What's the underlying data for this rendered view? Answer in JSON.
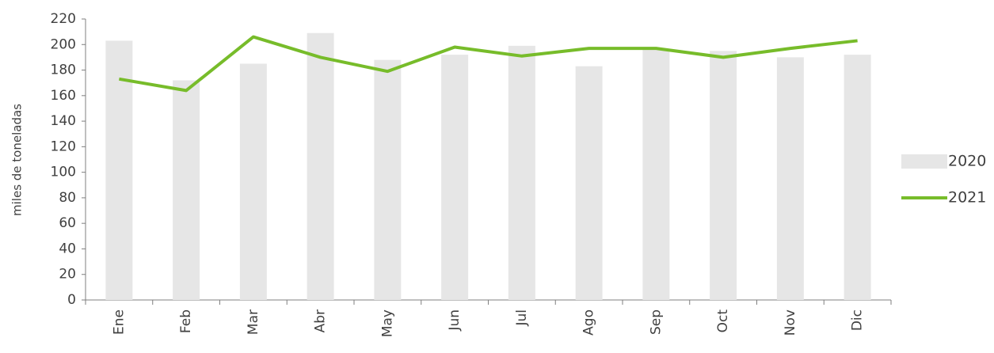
{
  "chart_data": {
    "type": "bar-line",
    "y_label": "miles de toneladas",
    "categories": [
      "Ene",
      "Feb",
      "Mar",
      "Abr",
      "May",
      "Jun",
      "Jul",
      "Ago",
      "Sep",
      "Oct",
      "Nov",
      "Dic"
    ],
    "series": [
      {
        "name": "2020",
        "type": "bar",
        "color": "#e6e6e6",
        "values": [
          203,
          172,
          185,
          209,
          188,
          192,
          199,
          183,
          196,
          195,
          190,
          192
        ]
      },
      {
        "name": "2021",
        "type": "line",
        "color": "#77bc2a",
        "values": [
          173,
          164,
          206,
          190,
          179,
          198,
          191,
          197,
          197,
          190,
          197,
          203
        ]
      }
    ],
    "ylim": [
      0,
      220
    ],
    "yticks": [
      0,
      20,
      40,
      60,
      80,
      100,
      120,
      140,
      160,
      180,
      200,
      220
    ],
    "grid": false,
    "legend": "right"
  }
}
